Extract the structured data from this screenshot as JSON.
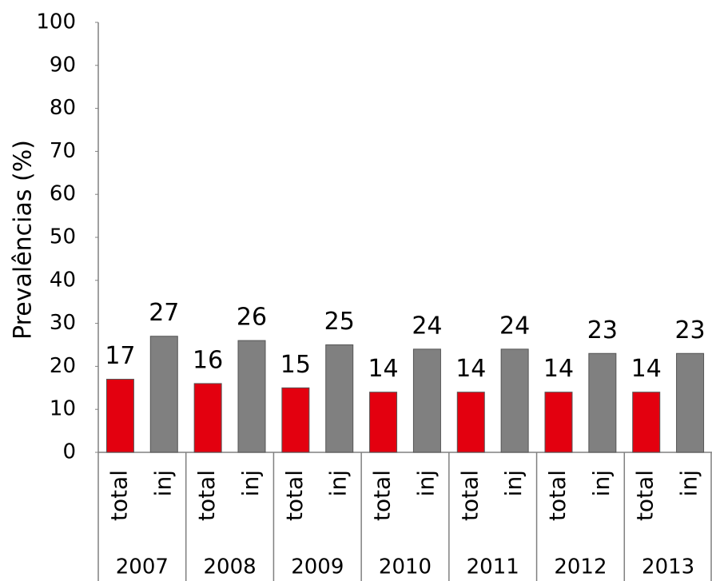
{
  "chart_data": {
    "type": "bar",
    "ylabel": "Prevalências  (%)",
    "categories": [
      "2007",
      "2008",
      "2009",
      "2010",
      "2011",
      "2012",
      "2013"
    ],
    "series": [
      {
        "name": "total",
        "color": "#e3000f",
        "values": [
          17,
          16,
          15,
          14,
          14,
          14,
          14
        ]
      },
      {
        "name": "inj",
        "color": "#808080",
        "values": [
          27,
          26,
          25,
          24,
          24,
          23,
          23
        ]
      }
    ],
    "ylim": [
      0,
      100
    ],
    "yticks": [
      0,
      10,
      20,
      30,
      40,
      50,
      60,
      70,
      80,
      90,
      100
    ],
    "grid": false
  }
}
